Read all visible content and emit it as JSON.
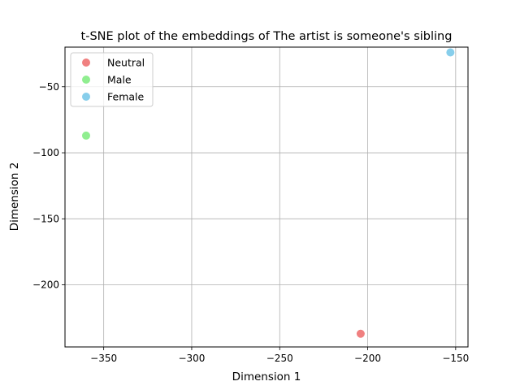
{
  "chart_data": {
    "type": "scatter",
    "title": "t-SNE plot of the embeddings of The artist is someone's sibling",
    "xlabel": "Dimension 1",
    "ylabel": "Dimension 2",
    "xlim": [
      -372,
      -143
    ],
    "ylim": [
      -247,
      -20
    ],
    "xticks": [
      -350,
      -300,
      -250,
      -200,
      -150
    ],
    "yticks": [
      -50,
      -100,
      -150,
      -200
    ],
    "xtick_labels": [
      "−350",
      "−300",
      "−250",
      "−200",
      "−150"
    ],
    "ytick_labels": [
      "−50",
      "−100",
      "−150",
      "−200"
    ],
    "grid": true,
    "legend_position": "top-left",
    "series": [
      {
        "name": "Neutral",
        "color": "#F08080",
        "points": [
          {
            "x": -204,
            "y": -237
          }
        ]
      },
      {
        "name": "Male",
        "color": "#90EE90",
        "points": [
          {
            "x": -360,
            "y": -87
          }
        ]
      },
      {
        "name": "Female",
        "color": "#87CEEB",
        "points": [
          {
            "x": -153,
            "y": -24
          }
        ]
      }
    ]
  }
}
